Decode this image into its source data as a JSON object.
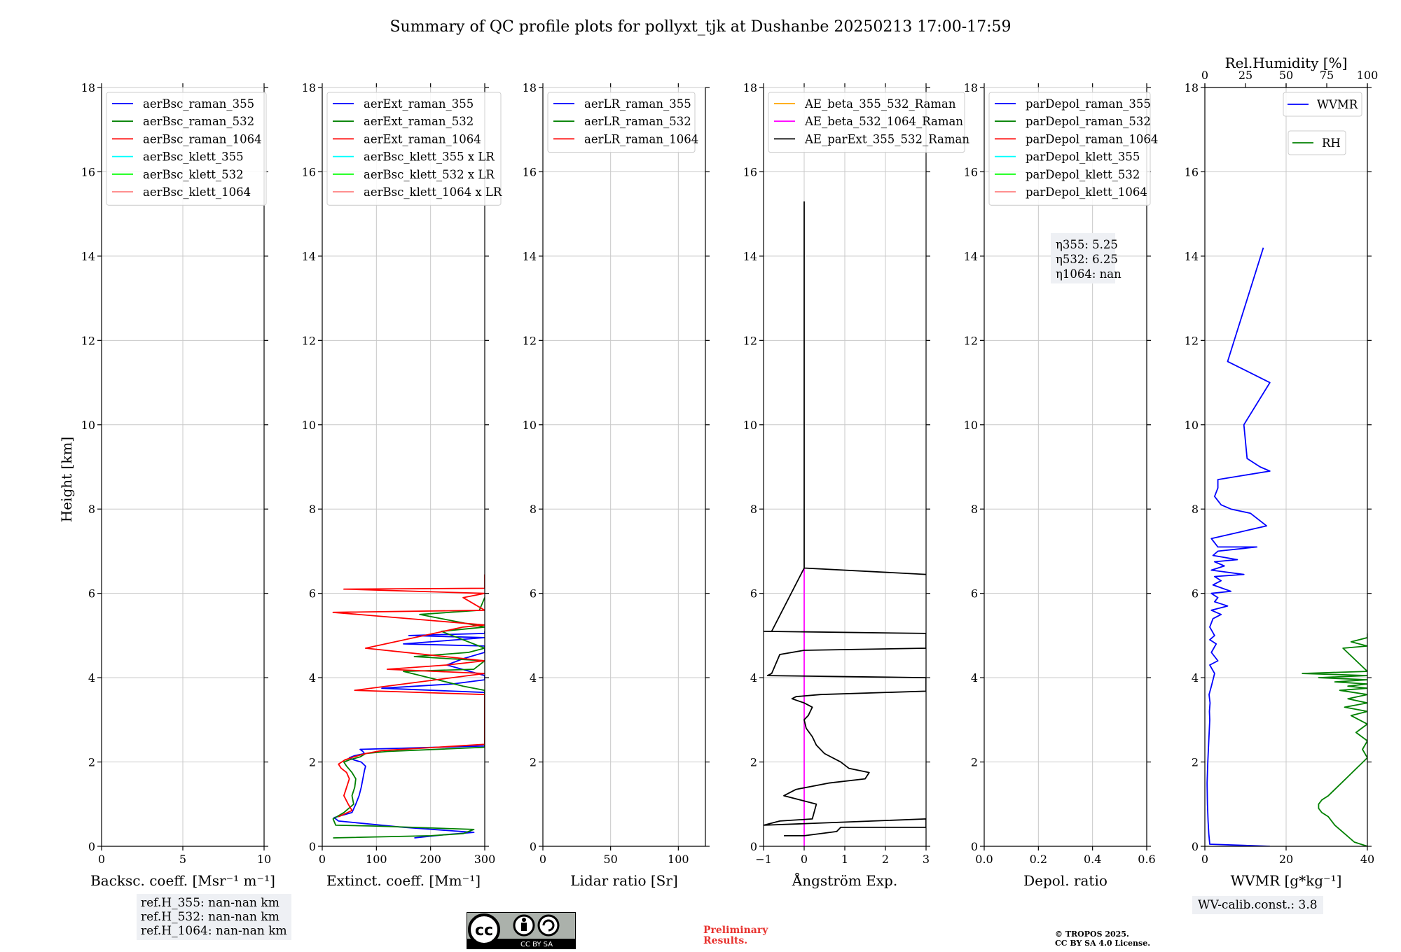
{
  "figure": {
    "title": "Summary of QC profile plots for pollyxt_tjk at Dushanbe 20250213 17:00-17:59",
    "ylabel": "Height [km]",
    "ref_heights": [
      "ref.H_355: nan-nan km",
      "ref.H_532: nan-nan km",
      "ref.H_1064: nan-nan km"
    ],
    "license_badge": "CC BY SA",
    "preliminary": [
      "Preliminary",
      "Results."
    ],
    "copyright": [
      "© TROPOS 2025.",
      "CC BY SA 4.0 License."
    ],
    "wv_calib": "WV-calib.const.: 3.8",
    "eta_box": [
      "η355: 5.25",
      "η532: 6.25",
      "η1064: nan"
    ]
  },
  "chart_data": [
    {
      "type": "line",
      "panel": "backscatter",
      "xlabel": "Backsc. coeff. [Msr⁻¹ m⁻¹]",
      "xlim": [
        0,
        10
      ],
      "xticks": [
        "0",
        "5",
        "10"
      ],
      "ylim": [
        0,
        18
      ],
      "yticks": [
        "0",
        "2",
        "4",
        "6",
        "8",
        "10",
        "12",
        "14",
        "16",
        "18"
      ],
      "grid": true,
      "legend_position": "top-left",
      "series": [
        {
          "name": "aerBsc_raman_355",
          "color": "#0000ff",
          "x": [],
          "y": []
        },
        {
          "name": "aerBsc_raman_532",
          "color": "#008000",
          "x": [],
          "y": []
        },
        {
          "name": "aerBsc_raman_1064",
          "color": "#ff0000",
          "x": [],
          "y": []
        },
        {
          "name": "aerBsc_klett_355",
          "color": "#00ffff",
          "x": [],
          "y": []
        },
        {
          "name": "aerBsc_klett_532",
          "color": "#00ff00",
          "x": [],
          "y": []
        },
        {
          "name": "aerBsc_klett_1064",
          "color": "#ff8080",
          "x": [],
          "y": []
        }
      ]
    },
    {
      "type": "line",
      "panel": "extinction",
      "xlabel": "Extinct. coeff. [Mm⁻¹]",
      "xlim": [
        0,
        300
      ],
      "xticks": [
        "0",
        "100",
        "200",
        "300"
      ],
      "ylim": [
        0,
        18
      ],
      "yticks": [
        "0",
        "2",
        "4",
        "6",
        "8",
        "10",
        "12",
        "14",
        "16",
        "18"
      ],
      "grid": true,
      "legend_position": "top-left",
      "series": [
        {
          "name": "aerExt_raman_355",
          "color": "#0000ff",
          "x": [
            170,
            230,
            280,
            150,
            30,
            22,
            55,
            62,
            68,
            72,
            75,
            78,
            80,
            72,
            58,
            50,
            60,
            78,
            75,
            70,
            300,
            300,
            110,
            240,
            300,
            300,
            230,
            260,
            300,
            300,
            150,
            300,
            160,
            300,
            300
          ],
          "y": [
            0.2,
            0.28,
            0.33,
            0.45,
            0.6,
            0.68,
            0.8,
            1.0,
            1.2,
            1.4,
            1.6,
            1.8,
            1.9,
            2.0,
            2.05,
            2.1,
            2.15,
            2.2,
            2.25,
            2.3,
            2.38,
            3.65,
            3.75,
            3.85,
            3.95,
            4.05,
            4.3,
            4.45,
            4.6,
            4.75,
            4.8,
            4.95,
            5.0,
            5.05,
            5.1
          ]
        },
        {
          "name": "aerExt_raman_532",
          "color": "#008000",
          "x": [
            20,
            200,
            260,
            280,
            100,
            25,
            20,
            40,
            58,
            55,
            60,
            62,
            55,
            45,
            40,
            50,
            70,
            80,
            120,
            300,
            300,
            260,
            150,
            280,
            300,
            170,
            270,
            300,
            220,
            300,
            180,
            290,
            300
          ],
          "y": [
            0.2,
            0.25,
            0.3,
            0.4,
            0.48,
            0.5,
            0.65,
            0.8,
            1.0,
            1.2,
            1.4,
            1.6,
            1.75,
            1.9,
            2.0,
            2.05,
            2.12,
            2.2,
            2.25,
            2.35,
            3.7,
            3.8,
            4.15,
            4.2,
            4.4,
            4.5,
            4.6,
            4.7,
            5.1,
            5.2,
            5.5,
            5.6,
            5.9
          ]
        },
        {
          "name": "aerExt_raman_1064",
          "color": "#ff0000",
          "x": [
            30,
            55,
            48,
            40,
            45,
            50,
            45,
            35,
            30,
            42,
            58,
            80,
            110,
            300,
            300,
            60,
            300,
            120,
            230,
            300,
            80,
            260,
            300,
            20,
            300,
            260,
            300,
            40,
            300,
            300
          ],
          "y": [
            0.7,
            0.85,
            1.0,
            1.2,
            1.4,
            1.6,
            1.75,
            1.85,
            1.95,
            2.05,
            2.12,
            2.2,
            2.27,
            2.42,
            3.6,
            3.7,
            4.1,
            4.2,
            4.3,
            4.4,
            4.7,
            5.2,
            5.25,
            5.55,
            5.6,
            5.9,
            6.0,
            6.1,
            6.12,
            6.45
          ]
        },
        {
          "name": "aerBsc_klett_355 x LR",
          "color": "#00ffff",
          "x": [],
          "y": []
        },
        {
          "name": "aerBsc_klett_532 x LR",
          "color": "#00ff00",
          "x": [],
          "y": []
        },
        {
          "name": "aerBsc_klett_1064 x LR",
          "color": "#ff8080",
          "x": [],
          "y": []
        }
      ]
    },
    {
      "type": "line",
      "panel": "lidar-ratio",
      "xlabel": "Lidar ratio [Sr]",
      "xlim": [
        0,
        120
      ],
      "xticks": [
        "0",
        "50",
        "100"
      ],
      "ylim": [
        0,
        18
      ],
      "yticks": [
        "0",
        "2",
        "4",
        "6",
        "8",
        "10",
        "12",
        "14",
        "16",
        "18"
      ],
      "grid": true,
      "legend_position": "top-left",
      "series": [
        {
          "name": "aerLR_raman_355",
          "color": "#0000ff",
          "x": [],
          "y": []
        },
        {
          "name": "aerLR_raman_532",
          "color": "#008000",
          "x": [],
          "y": []
        },
        {
          "name": "aerLR_raman_1064",
          "color": "#ff0000",
          "x": [],
          "y": []
        }
      ]
    },
    {
      "type": "line",
      "panel": "angstrom",
      "xlabel": "Ångström Exp.",
      "xlim": [
        -1,
        3
      ],
      "xticks": [
        "−1",
        "0",
        "1",
        "2",
        "3"
      ],
      "ylim": [
        0,
        18
      ],
      "yticks": [
        "0",
        "2",
        "4",
        "6",
        "8",
        "10",
        "12",
        "14",
        "16",
        "18"
      ],
      "grid": true,
      "legend_position": "top-left",
      "series": [
        {
          "name": "AE_beta_355_532_Raman",
          "color": "#ffa500",
          "x": [],
          "y": []
        },
        {
          "name": "AE_beta_532_1064_Raman",
          "color": "#ff00ff",
          "x": [
            0,
            0
          ],
          "y": [
            0,
            6.6
          ]
        },
        {
          "name": "AE_parExt_355_532_Raman",
          "color": "#000000",
          "x": [
            -0.5,
            0.0,
            0.8,
            0.9,
            3.0,
            3.0,
            -1.0,
            -0.6,
            0.2,
            0.3,
            -0.5,
            -0.2,
            0.6,
            1.5,
            1.6,
            1.1,
            0.9,
            0.5,
            0.3,
            0.2,
            0.05,
            0.0,
            0.1,
            0.2,
            0.0,
            -0.3,
            -0.2,
            0.4,
            3.0,
            3.0,
            -0.9,
            -0.8,
            -0.6,
            0.0,
            3.0,
            3.0,
            -1.0,
            -0.8,
            0.0,
            3.0,
            3.0,
            0.0,
            0.0
          ],
          "y": [
            0.25,
            0.25,
            0.35,
            0.45,
            0.45,
            0.65,
            0.5,
            0.6,
            0.65,
            1.0,
            1.2,
            1.35,
            1.5,
            1.6,
            1.75,
            1.85,
            2.0,
            2.2,
            2.4,
            2.6,
            2.8,
            3.0,
            3.1,
            3.3,
            3.4,
            3.5,
            3.55,
            3.6,
            3.68,
            4.0,
            4.05,
            4.1,
            4.55,
            4.65,
            4.7,
            5.05,
            5.1,
            5.1,
            6.6,
            6.45,
            6.45,
            6.6,
            15.3
          ]
        }
      ]
    },
    {
      "type": "line",
      "panel": "depolarization",
      "xlabel": "Depol. ratio",
      "xlim": [
        0.0,
        0.6
      ],
      "xticks": [
        "0.0",
        "0.2",
        "0.4",
        "0.6"
      ],
      "ylim": [
        0,
        18
      ],
      "yticks": [
        "0",
        "2",
        "4",
        "6",
        "8",
        "10",
        "12",
        "14",
        "16",
        "18"
      ],
      "grid": true,
      "legend_position": "top-left",
      "series": [
        {
          "name": "parDepol_raman_355",
          "color": "#0000ff",
          "x": [],
          "y": []
        },
        {
          "name": "parDepol_raman_532",
          "color": "#008000",
          "x": [],
          "y": []
        },
        {
          "name": "parDepol_raman_1064",
          "color": "#ff0000",
          "x": [],
          "y": []
        },
        {
          "name": "parDepol_klett_355",
          "color": "#00ffff",
          "x": [],
          "y": []
        },
        {
          "name": "parDepol_klett_532",
          "color": "#00ff00",
          "x": [],
          "y": []
        },
        {
          "name": "parDepol_klett_1064",
          "color": "#ff8080",
          "x": [],
          "y": []
        }
      ]
    },
    {
      "type": "line",
      "panel": "wvmr-rh",
      "xlabel": "WVMR [g*kg⁻¹]",
      "xlim": [
        0,
        50
      ],
      "xticks": [
        "0",
        "20",
        "40"
      ],
      "x2label": "Rel.Humidity [%]",
      "x2lim": [
        0,
        100
      ],
      "x2ticks": [
        "0",
        "25",
        "50",
        "75",
        "100"
      ],
      "ylim": [
        0,
        18
      ],
      "yticks": [
        "0",
        "2",
        "4",
        "6",
        "8",
        "10",
        "12",
        "14",
        "16",
        "18"
      ],
      "grid": true,
      "legend_position": "top-right",
      "series": [
        {
          "name": "WVMR",
          "color": "#0000ff",
          "x": [
            20,
            1.5,
            1.2,
            1.0,
            0.8,
            0.7,
            0.9,
            1.2,
            1.5,
            1.4,
            1.6,
            1.3,
            2.0,
            3.0,
            1.5,
            4.0,
            2.0,
            3.5,
            1.5,
            3.0,
            1.5,
            2.5,
            5.0,
            2.0,
            7.0,
            3.0,
            4.0,
            2.0,
            8.0,
            2.5,
            5.0,
            3.0,
            12.0,
            2.0,
            6.0,
            3.0,
            10.0,
            2.5,
            4.0,
            16.0,
            4.0,
            2.0,
            19.0,
            14.0,
            8.0,
            5.0,
            3.0,
            4.0,
            4.0,
            20.0,
            17.0,
            13.0,
            12.0,
            20.0,
            7.0,
            18.0
          ],
          "y": [
            0,
            0.05,
            0.3,
            0.6,
            1.0,
            1.5,
            2.0,
            2.5,
            3.0,
            3.2,
            3.4,
            3.6,
            3.8,
            4.1,
            4.3,
            4.4,
            4.6,
            4.8,
            4.9,
            5.0,
            5.2,
            5.4,
            5.5,
            5.6,
            5.7,
            5.8,
            5.9,
            6.0,
            6.05,
            6.2,
            6.3,
            6.4,
            6.45,
            6.55,
            6.65,
            6.75,
            6.8,
            6.9,
            7.0,
            7.1,
            7.1,
            7.3,
            7.6,
            7.9,
            8.0,
            8.1,
            8.3,
            8.5,
            8.7,
            8.9,
            9.0,
            9.2,
            10.0,
            11.0,
            11.5,
            14.2
          ]
        },
        {
          "name": "RH",
          "color": "#008000",
          "x": [
            100,
            92,
            86,
            80,
            76,
            72,
            70,
            70,
            72,
            76,
            80,
            84,
            88,
            92,
            96,
            100,
            97,
            100,
            93,
            100,
            90,
            100,
            86,
            100,
            88,
            100,
            83,
            100,
            88,
            100,
            80,
            100,
            70,
            100,
            60,
            100,
            85,
            100,
            90,
            100,
            100
          ],
          "y": [
            0,
            0.1,
            0.3,
            0.5,
            0.7,
            0.8,
            0.9,
            1.0,
            1.1,
            1.2,
            1.35,
            1.5,
            1.65,
            1.8,
            1.95,
            2.1,
            2.3,
            2.5,
            2.7,
            2.9,
            3.1,
            3.2,
            3.3,
            3.4,
            3.5,
            3.6,
            3.7,
            3.75,
            3.8,
            3.85,
            3.9,
            3.95,
            4.0,
            4.05,
            4.1,
            4.15,
            4.7,
            4.75,
            4.85,
            4.95,
            5.05
          ]
        }
      ]
    }
  ]
}
